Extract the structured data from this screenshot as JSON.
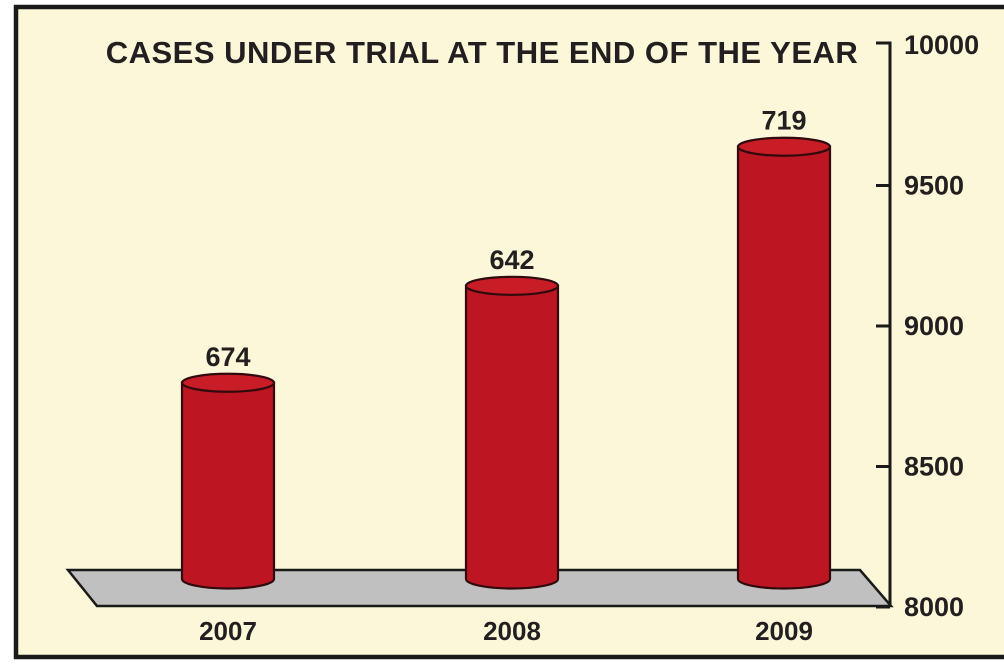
{
  "chart_data": {
    "type": "bar",
    "variant": "3d-cylinder",
    "title": "CASES UNDER TRIAL AT THE END OF THE YEAR",
    "categories": [
      "2007",
      "2008",
      "2009"
    ],
    "values": [
      674,
      642,
      719
    ],
    "bar_labels": [
      "674",
      "642",
      "719"
    ],
    "series": [
      {
        "name": "Cases under trial",
        "values": [
          674,
          642,
          719
        ]
      }
    ],
    "y_axis": {
      "side": "right",
      "min": 8000,
      "max": 10000,
      "tick_step": 500,
      "ticks": [
        10000,
        9500,
        9000,
        8500,
        8000
      ]
    },
    "bar_top_axis_positions": [
      8830,
      9175,
      9670
    ],
    "legend": "none",
    "grid": "off",
    "layout_hints": {
      "title_position": "top-center",
      "value_labels": "above-bars",
      "floor": "gray-parallelogram"
    },
    "colors": {
      "bar": "#BE1522",
      "bar_top": "#C81C26",
      "outline": "#300A0D",
      "floor": "#C0C0C1",
      "floor_outline": "#1A1A1A",
      "background": "#FBF7D8",
      "frame": "#1A1A1A",
      "axis": "#1A1A1A",
      "text": "#231F20",
      "page_background": "#FFFFFF"
    }
  }
}
